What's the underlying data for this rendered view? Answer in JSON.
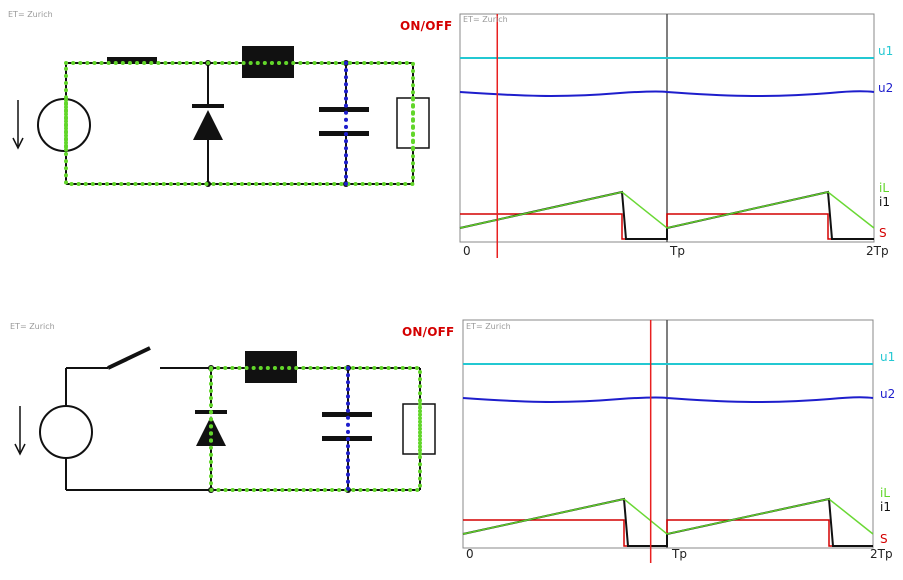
{
  "panels": [
    {
      "state": "switch-closed",
      "circuit_label": "ET= Zurich",
      "plot_label": "ET= Zurich",
      "onoff_label": "ON/OFF",
      "legend": {
        "u1": "u1",
        "u2": "u2",
        "iL": "iL",
        "i1": "i1",
        "S": "S"
      },
      "time_ticks": [
        "0",
        "Tp",
        "2Tp"
      ],
      "time_cursor": 0.18
    },
    {
      "state": "switch-open",
      "circuit_label": "ET= Zurich",
      "plot_label": "ET= Zurich",
      "onoff_label": "ON/OFF",
      "legend": {
        "u1": "u1",
        "u2": "u2",
        "iL": "iL",
        "i1": "i1",
        "S": "S"
      },
      "time_ticks": [
        "0",
        "Tp",
        "2Tp"
      ],
      "time_cursor": 0.92
    }
  ],
  "colors": {
    "u1": "#23c8d2",
    "u2": "#1e1ecc",
    "iL": "#62d62a",
    "i1": "#111111",
    "S": "#d40000",
    "cursor": "#e82020",
    "current_path": "#62d62a",
    "capacitor_path": "#1e1ecc"
  }
}
